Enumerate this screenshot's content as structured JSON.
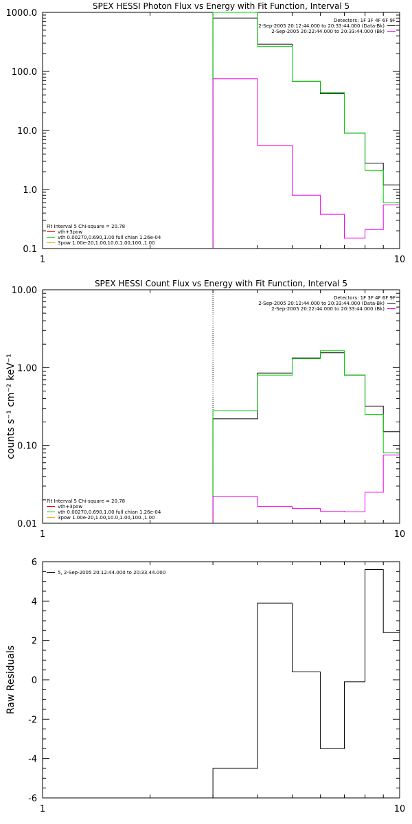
{
  "chart_data": [
    {
      "type": "line",
      "title": "SPEX HESSI Photon Flux vs Energy with Fit Function, Interval 5",
      "xlabel": "",
      "ylabel": "",
      "x_scale": "log",
      "y_scale": "log",
      "xlim": [
        1,
        10
      ],
      "ylim": [
        0.1,
        1000
      ],
      "x_tick_labels": [
        "1",
        "10"
      ],
      "y_tick_labels": [
        "0.1",
        "1.0",
        "10.0",
        "100.0",
        "1000.0"
      ],
      "y_ticks": [
        0.1,
        1,
        10,
        100,
        1000
      ],
      "energy_edges": [
        3,
        4,
        5,
        6,
        7,
        8,
        9,
        10
      ],
      "fit_start_energy": 3,
      "series": [
        {
          "name": "",
          "color": "#000000",
          "values": [
            800,
            290,
            68,
            42,
            9,
            2.8,
            1.2
          ]
        },
        {
          "name": "vth+3pow",
          "color": "#00cc00",
          "values": [
            1000,
            265,
            68,
            44,
            9,
            2.1,
            0.6
          ]
        },
        {
          "name": "",
          "color": "#ee00ee",
          "values": [
            75,
            5.6,
            0.8,
            0.38,
            0.15,
            0.21,
            0.55
          ]
        }
      ],
      "legend_right": [
        {
          "text": "Detectors: 1F 3F 4F 6F 9F",
          "color": ""
        },
        {
          "text": "2-Sep-2005 20:12:44.000 to 20:33:44.000 (Data-Bk)",
          "color": "#000000"
        },
        {
          "text": "2-Sep-2005 20:22:44.000 to 20:33:44.000 (Bk)",
          "color": "#ee00ee"
        }
      ],
      "legend_left": [
        {
          "text": "Fit Interval 5   Chi-square = 20.78",
          "color": ""
        },
        {
          "text": "vth+3pow",
          "color": "#ee0000"
        },
        {
          "text": "vth 0.00270,0.690,1.00  full chian 1.26e-04",
          "color": "#00cc00"
        },
        {
          "text": "3pow 1.00e-20,1.00,10.0,1.00,100.,1.00",
          "color": "#eeaa00"
        }
      ]
    },
    {
      "type": "line",
      "title": "SPEX HESSI Count Flux vs Energy with Fit Function, Interval 5",
      "xlabel": "",
      "ylabel": "counts s⁻¹ cm⁻² keV⁻¹",
      "x_scale": "log",
      "y_scale": "log",
      "xlim": [
        1,
        10
      ],
      "ylim": [
        0.01,
        10
      ],
      "x_tick_labels": [
        "1",
        "10"
      ],
      "y_tick_labels": [
        "0.01",
        "0.10",
        "1.00",
        "10.00"
      ],
      "y_ticks": [
        0.01,
        0.1,
        1,
        10
      ],
      "energy_edges": [
        3,
        4,
        5,
        6,
        7,
        8,
        9,
        10
      ],
      "fit_start_energy": 3,
      "series": [
        {
          "name": "",
          "color": "#000000",
          "values": [
            0.22,
            0.85,
            1.33,
            1.55,
            0.8,
            0.32,
            0.15
          ]
        },
        {
          "name": "vth+3pow",
          "color": "#00cc00",
          "values": [
            0.28,
            0.8,
            1.3,
            1.65,
            0.8,
            0.25,
            0.08
          ]
        },
        {
          "name": "",
          "color": "#ee00ee",
          "values": [
            0.022,
            0.0165,
            0.0155,
            0.0142,
            0.014,
            0.025,
            0.075
          ]
        }
      ],
      "legend_right": [
        {
          "text": "Detectors: 1F 3F 4F 6F 9F",
          "color": ""
        },
        {
          "text": "2-Sep-2005 20:12:44.000 to 20:33:44.000 (Data-Bk)",
          "color": "#000000"
        },
        {
          "text": "2-Sep-2005 20:22:44.000 to 20:33:44.000 (Bk)",
          "color": "#ee00ee"
        }
      ],
      "legend_left": [
        {
          "text": "Fit Interval 5   Chi-square = 20.78",
          "color": ""
        },
        {
          "text": "vth+3pow",
          "color": "#ee0000"
        },
        {
          "text": "vth 0.00270,0.690,1.00  full chian 1.26e-04",
          "color": "#00cc00"
        },
        {
          "text": "3pow 1.00e-20,1.00,10.0,1.00,100.,1.00",
          "color": "#eeaa00"
        }
      ]
    },
    {
      "type": "line",
      "title": "",
      "xlabel": "",
      "ylabel": "Raw Residuals",
      "x_scale": "log",
      "y_scale": "linear",
      "xlim": [
        1,
        10
      ],
      "ylim": [
        -6,
        6
      ],
      "x_tick_labels": [
        "1",
        "10"
      ],
      "y_tick_labels": [
        "-6",
        "-4",
        "-2",
        "0",
        "2",
        "4",
        "6"
      ],
      "y_ticks": [
        -6,
        -4,
        -2,
        0,
        2,
        4,
        6
      ],
      "energy_edges": [
        3,
        4,
        5,
        6,
        7,
        8,
        9,
        10
      ],
      "series": [
        {
          "name": "5, 2-Sep-2005 20:12:44.000 to 20:33:44.000",
          "color": "#000000",
          "values": [
            -4.5,
            3.9,
            0.4,
            -3.5,
            -0.1,
            5.6,
            2.4
          ]
        }
      ],
      "legend_left": [
        {
          "text": "5, 2-Sep-2005 20:12:44.000 to 20:33:44.000",
          "color": "#000000"
        }
      ]
    }
  ]
}
